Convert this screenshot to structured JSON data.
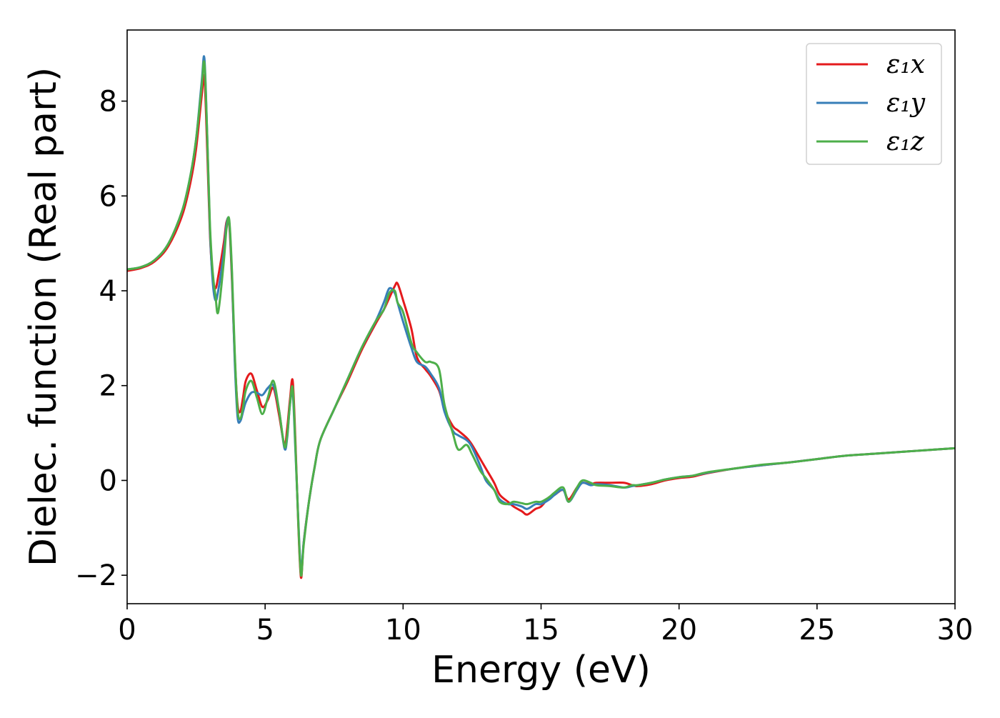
{
  "chart_data": {
    "type": "line",
    "xlabel": "Energy (eV)",
    "ylabel": "Dielec. function (Real part)",
    "xlim": [
      0,
      30
    ],
    "ylim": [
      -2.6,
      9.5
    ],
    "xticks": [
      0,
      5,
      10,
      15,
      20,
      25,
      30
    ],
    "xtick_labels": [
      "0",
      "5",
      "10",
      "15",
      "20",
      "25",
      "30"
    ],
    "yticks": [
      -2,
      0,
      2,
      4,
      6,
      8
    ],
    "ytick_labels": [
      "−2",
      "0",
      "2",
      "4",
      "6",
      "8"
    ],
    "grid": false,
    "legend_position": "top-right",
    "series": [
      {
        "name": "ε₁x",
        "color": "#e41a1c",
        "x": [
          0,
          0.5,
          1.0,
          1.5,
          2.0,
          2.3,
          2.5,
          2.7,
          2.8,
          2.9,
          3.0,
          3.1,
          3.2,
          3.3,
          3.5,
          3.6,
          3.7,
          3.8,
          3.9,
          4.0,
          4.1,
          4.2,
          4.3,
          4.5,
          4.7,
          4.9,
          5.1,
          5.3,
          5.5,
          5.7,
          5.8,
          5.9,
          6.0,
          6.1,
          6.2,
          6.3,
          6.4,
          6.6,
          6.8,
          7.0,
          7.5,
          8.0,
          8.5,
          9.0,
          9.3,
          9.5,
          9.7,
          9.8,
          10.0,
          10.3,
          10.5,
          10.8,
          11.0,
          11.3,
          11.5,
          11.8,
          12.0,
          12.3,
          12.5,
          12.8,
          13.0,
          13.3,
          13.5,
          13.8,
          14.0,
          14.3,
          14.5,
          14.8,
          15.0,
          15.3,
          15.5,
          15.8,
          16.0,
          16.3,
          16.5,
          16.8,
          17.0,
          17.5,
          18.0,
          18.3,
          18.5,
          19.0,
          19.5,
          20.0,
          20.5,
          21.0,
          22.0,
          23.0,
          24.0,
          25.0,
          26.0,
          27.0,
          28.0,
          29.0,
          30.0
        ],
        "y": [
          4.42,
          4.48,
          4.62,
          4.95,
          5.6,
          6.3,
          7.0,
          8.1,
          8.5,
          7.0,
          5.2,
          4.3,
          4.05,
          4.3,
          5.0,
          5.45,
          5.4,
          4.2,
          2.6,
          1.6,
          1.45,
          1.75,
          2.1,
          2.25,
          1.9,
          1.55,
          1.7,
          1.95,
          1.4,
          0.75,
          1.1,
          1.7,
          2.1,
          0.8,
          -0.9,
          -2.05,
          -1.3,
          -0.4,
          0.3,
          0.85,
          1.5,
          2.1,
          2.75,
          3.3,
          3.6,
          3.85,
          4.1,
          4.15,
          3.8,
          3.2,
          2.6,
          2.35,
          2.2,
          1.9,
          1.5,
          1.15,
          1.05,
          0.9,
          0.75,
          0.45,
          0.25,
          -0.05,
          -0.3,
          -0.45,
          -0.55,
          -0.65,
          -0.72,
          -0.6,
          -0.55,
          -0.35,
          -0.3,
          -0.2,
          -0.4,
          -0.15,
          -0.05,
          -0.08,
          -0.05,
          -0.05,
          -0.05,
          -0.1,
          -0.12,
          -0.08,
          0.0,
          0.05,
          0.08,
          0.15,
          0.25,
          0.32,
          0.38,
          0.45,
          0.52,
          0.56,
          0.6,
          0.64,
          0.68
        ]
      },
      {
        "name": "ε₁y",
        "color": "#377eb8",
        "x": [
          0,
          0.5,
          1.0,
          1.5,
          2.0,
          2.3,
          2.5,
          2.7,
          2.8,
          2.9,
          3.0,
          3.1,
          3.2,
          3.3,
          3.5,
          3.6,
          3.7,
          3.8,
          3.9,
          4.0,
          4.1,
          4.2,
          4.3,
          4.5,
          4.7,
          4.9,
          5.1,
          5.3,
          5.5,
          5.7,
          5.8,
          5.9,
          6.0,
          6.1,
          6.2,
          6.3,
          6.4,
          6.6,
          6.8,
          7.0,
          7.5,
          8.0,
          8.5,
          9.0,
          9.3,
          9.5,
          9.7,
          9.8,
          10.0,
          10.3,
          10.5,
          10.8,
          11.0,
          11.3,
          11.5,
          11.8,
          12.0,
          12.3,
          12.5,
          12.8,
          13.0,
          13.3,
          13.5,
          13.8,
          14.0,
          14.3,
          14.5,
          14.8,
          15.0,
          15.3,
          15.5,
          15.8,
          16.0,
          16.3,
          16.5,
          16.8,
          17.0,
          17.5,
          18.0,
          18.3,
          18.5,
          19.0,
          19.5,
          20.0,
          20.5,
          21.0,
          22.0,
          23.0,
          24.0,
          25.0,
          26.0,
          27.0,
          28.0,
          29.0,
          30.0
        ],
        "y": [
          4.45,
          4.5,
          4.65,
          5.0,
          5.7,
          6.45,
          7.2,
          8.4,
          8.9,
          7.3,
          5.3,
          4.2,
          3.8,
          4.0,
          4.8,
          5.4,
          5.45,
          4.3,
          2.5,
          1.35,
          1.25,
          1.45,
          1.65,
          1.85,
          1.85,
          1.8,
          1.95,
          2.0,
          1.5,
          0.68,
          0.9,
          1.6,
          1.85,
          0.6,
          -0.8,
          -1.9,
          -1.3,
          -0.4,
          0.3,
          0.85,
          1.5,
          2.15,
          2.8,
          3.35,
          3.75,
          4.05,
          3.95,
          3.75,
          3.35,
          2.8,
          2.5,
          2.4,
          2.25,
          1.95,
          1.45,
          1.05,
          0.95,
          0.85,
          0.7,
          0.3,
          0.0,
          -0.2,
          -0.4,
          -0.5,
          -0.5,
          -0.55,
          -0.6,
          -0.5,
          -0.5,
          -0.4,
          -0.3,
          -0.2,
          -0.45,
          -0.2,
          -0.05,
          -0.1,
          -0.08,
          -0.1,
          -0.15,
          -0.12,
          -0.1,
          -0.05,
          0.02,
          0.07,
          0.1,
          0.16,
          0.25,
          0.32,
          0.38,
          0.45,
          0.52,
          0.56,
          0.6,
          0.64,
          0.68
        ]
      },
      {
        "name": "ε₁z",
        "color": "#4daf4a",
        "x": [
          0,
          0.5,
          1.0,
          1.5,
          2.0,
          2.3,
          2.5,
          2.7,
          2.8,
          2.9,
          3.0,
          3.1,
          3.2,
          3.3,
          3.5,
          3.6,
          3.7,
          3.8,
          3.9,
          4.0,
          4.1,
          4.2,
          4.3,
          4.5,
          4.7,
          4.9,
          5.1,
          5.3,
          5.5,
          5.7,
          5.8,
          5.9,
          6.0,
          6.1,
          6.2,
          6.3,
          6.4,
          6.6,
          6.8,
          7.0,
          7.5,
          8.0,
          8.5,
          9.0,
          9.3,
          9.5,
          9.7,
          9.8,
          10.0,
          10.3,
          10.5,
          10.8,
          11.0,
          11.3,
          11.5,
          11.8,
          12.0,
          12.3,
          12.5,
          12.8,
          13.0,
          13.3,
          13.5,
          13.8,
          14.0,
          14.3,
          14.5,
          14.8,
          15.0,
          15.3,
          15.5,
          15.8,
          16.0,
          16.3,
          16.5,
          16.8,
          17.0,
          17.5,
          18.0,
          18.3,
          18.5,
          19.0,
          19.5,
          20.0,
          20.5,
          21.0,
          22.0,
          23.0,
          24.0,
          25.0,
          26.0,
          27.0,
          28.0,
          29.0,
          30.0
        ],
        "y": [
          4.45,
          4.5,
          4.65,
          5.0,
          5.7,
          6.45,
          7.2,
          8.3,
          8.8,
          7.3,
          5.4,
          4.4,
          3.9,
          3.55,
          4.6,
          5.3,
          5.5,
          4.4,
          2.7,
          1.5,
          1.3,
          1.55,
          1.9,
          2.1,
          1.75,
          1.4,
          1.75,
          2.1,
          1.5,
          0.72,
          0.95,
          1.6,
          1.95,
          0.7,
          -0.85,
          -2.0,
          -1.35,
          -0.4,
          0.3,
          0.85,
          1.5,
          2.15,
          2.8,
          3.35,
          3.6,
          3.95,
          4.0,
          3.75,
          3.55,
          2.9,
          2.7,
          2.5,
          2.5,
          2.35,
          1.6,
          1.0,
          0.65,
          0.75,
          0.55,
          0.2,
          0.05,
          -0.2,
          -0.45,
          -0.5,
          -0.45,
          -0.48,
          -0.5,
          -0.45,
          -0.45,
          -0.35,
          -0.25,
          -0.15,
          -0.45,
          -0.15,
          0.0,
          -0.05,
          -0.1,
          -0.12,
          -0.15,
          -0.1,
          -0.1,
          -0.05,
          0.02,
          0.07,
          0.1,
          0.17,
          0.25,
          0.33,
          0.38,
          0.45,
          0.52,
          0.56,
          0.6,
          0.64,
          0.68
        ]
      }
    ]
  }
}
